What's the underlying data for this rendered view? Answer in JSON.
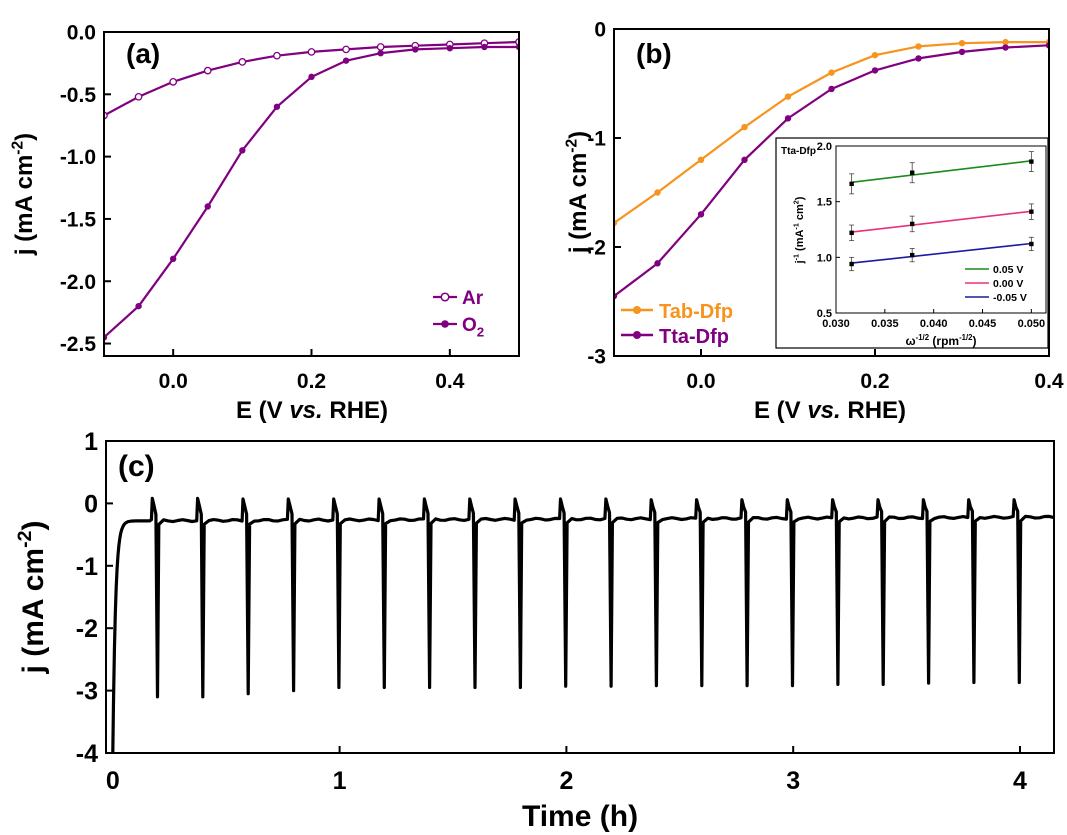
{
  "chart_data": [
    {
      "panel": "(a)",
      "type": "line",
      "xlabel_parts": [
        "E (V ",
        "vs.",
        " RHE)"
      ],
      "ylabel_parts": [
        "j (mA cm",
        "-2",
        ")"
      ],
      "xlim": [
        -0.1,
        0.5
      ],
      "ylim": [
        -2.6,
        0.0
      ],
      "xticks": [
        0.0,
        0.2,
        0.4
      ],
      "xtick_labels": [
        "0.0",
        "0.2",
        "0.4"
      ],
      "yticks": [
        0.0,
        -0.5,
        -1.0,
        -1.5,
        -2.0,
        -2.5
      ],
      "ytick_labels": [
        "0.0",
        "-0.5",
        "-1.0",
        "-1.5",
        "-2.0",
        "-2.5"
      ],
      "legend_position": "bottom-right",
      "series": [
        {
          "name": "Ar",
          "name_parts": [
            "Ar"
          ],
          "marker": "open-circle",
          "color": "#800080",
          "x": [
            -0.1,
            -0.05,
            0.0,
            0.05,
            0.1,
            0.15,
            0.2,
            0.25,
            0.3,
            0.35,
            0.4,
            0.45,
            0.5
          ],
          "y": [
            -0.67,
            -0.52,
            -0.4,
            -0.31,
            -0.24,
            -0.19,
            -0.16,
            -0.14,
            -0.12,
            -0.11,
            -0.1,
            -0.09,
            -0.08
          ]
        },
        {
          "name": "O2",
          "name_parts": [
            "O",
            "2"
          ],
          "marker": "filled-circle",
          "color": "#800080",
          "x": [
            -0.1,
            -0.05,
            0.0,
            0.05,
            0.1,
            0.15,
            0.2,
            0.25,
            0.3,
            0.35,
            0.4,
            0.45,
            0.5
          ],
          "y": [
            -2.45,
            -2.2,
            -1.82,
            -1.4,
            -0.95,
            -0.6,
            -0.36,
            -0.23,
            -0.17,
            -0.14,
            -0.13,
            -0.12,
            -0.12
          ]
        }
      ]
    },
    {
      "panel": "(b)",
      "type": "line",
      "xlabel_parts": [
        "E (V ",
        "vs.",
        " RHE)"
      ],
      "ylabel_parts": [
        "j (mA cm",
        "-2",
        ")"
      ],
      "xlim": [
        -0.1,
        0.4
      ],
      "ylim": [
        -3,
        0
      ],
      "xticks": [
        0.0,
        0.2,
        0.4
      ],
      "xtick_labels": [
        "0.0",
        "0.2",
        "0.4"
      ],
      "yticks": [
        0,
        -1,
        -2,
        -3
      ],
      "ytick_labels": [
        "0",
        "-1",
        "-2",
        "-3"
      ],
      "legend_position": "bottom-left",
      "series": [
        {
          "name": "Tab-Dfp",
          "name_parts": [
            "Tab-Dfp"
          ],
          "marker": "filled-circle",
          "color": "#F7941D",
          "x": [
            -0.1,
            -0.05,
            0.0,
            0.05,
            0.1,
            0.15,
            0.2,
            0.25,
            0.3,
            0.35,
            0.4
          ],
          "y": [
            -1.78,
            -1.5,
            -1.2,
            -0.9,
            -0.62,
            -0.4,
            -0.24,
            -0.16,
            -0.13,
            -0.12,
            -0.12
          ]
        },
        {
          "name": "Tta-Dfp",
          "name_parts": [
            "Tta-Dfp"
          ],
          "marker": "filled-circle",
          "color": "#800080",
          "x": [
            -0.1,
            -0.05,
            0.0,
            0.05,
            0.1,
            0.15,
            0.2,
            0.25,
            0.3,
            0.35,
            0.4
          ],
          "y": [
            -2.45,
            -2.15,
            -1.7,
            -1.2,
            -0.82,
            -0.55,
            -0.38,
            -0.27,
            -0.21,
            -0.17,
            -0.15
          ]
        }
      ],
      "inset": {
        "type": "scatter",
        "title": "Tta-Dfp",
        "xlabel_parts": [
          "ω",
          "-1/2",
          " (rpm",
          "-1/2",
          ")"
        ],
        "ylabel_parts": [
          "j",
          "-1",
          " (mA",
          "-1",
          " cm",
          "2",
          ")"
        ],
        "xlim": [
          0.03,
          0.0515
        ],
        "ylim": [
          0.5,
          2.0
        ],
        "xticks": [
          0.03,
          0.035,
          0.04,
          0.045,
          0.05
        ],
        "xtick_labels": [
          "0.030",
          "0.035",
          "0.040",
          "0.045",
          "0.050"
        ],
        "yticks": [
          0.5,
          1.0,
          1.5,
          2.0
        ],
        "ytick_labels": [
          "0.5",
          "1.0",
          "1.5",
          "2.0"
        ],
        "legend_position": "bottom-right",
        "series": [
          {
            "name": "0.05 V",
            "color": "#1A8A1A",
            "x": [
              0.0316,
              0.0378,
              0.05
            ],
            "y": [
              1.66,
              1.76,
              1.86
            ],
            "err": 0.09
          },
          {
            "name": "0.00 V",
            "color": "#E8307A",
            "x": [
              0.0316,
              0.0378,
              0.05
            ],
            "y": [
              1.22,
              1.3,
              1.41
            ],
            "err": 0.07
          },
          {
            "name": "-0.05 V",
            "color": "#1A1AA0",
            "x": [
              0.0316,
              0.0378,
              0.05
            ],
            "y": [
              0.94,
              1.02,
              1.12
            ],
            "err": 0.06
          }
        ]
      }
    },
    {
      "panel": "(c)",
      "type": "line",
      "xlabel": "Time (h)",
      "ylabel_parts": [
        "j (mA cm",
        "-2",
        ")"
      ],
      "xlim": [
        -0.03,
        4.15
      ],
      "ylim": [
        -4,
        1
      ],
      "xticks": [
        0,
        1,
        2,
        3,
        4
      ],
      "xtick_labels": [
        "0",
        "1",
        "2",
        "3",
        "4"
      ],
      "yticks": [
        1,
        0,
        -1,
        -2,
        -3,
        -4
      ],
      "ytick_labels": [
        "1",
        "0",
        "-1",
        "-2",
        "-3",
        "-4"
      ],
      "series": [
        {
          "name": "",
          "color": "#000000",
          "baseline": {
            "start": -4.0,
            "plateau": -0.28,
            "end": -0.22
          },
          "pulse_times": [
            0.17,
            0.37,
            0.57,
            0.77,
            0.97,
            1.17,
            1.37,
            1.57,
            1.77,
            1.97,
            2.17,
            2.37,
            2.57,
            2.77,
            2.97,
            3.17,
            3.37,
            3.57,
            3.77,
            3.97
          ],
          "spike_high": [
            0.08,
            0.08,
            0.07,
            0.07,
            0.07,
            0.07,
            0.07,
            0.07,
            0.07,
            0.07,
            0.07,
            0.06,
            0.06,
            0.06,
            0.06,
            0.06,
            0.06,
            0.06,
            0.06,
            0.06
          ],
          "spike_low": [
            -3.1,
            -3.1,
            -3.05,
            -3.0,
            -2.95,
            -2.95,
            -2.95,
            -2.95,
            -2.95,
            -2.93,
            -2.93,
            -2.92,
            -2.92,
            -2.92,
            -2.92,
            -2.9,
            -2.9,
            -2.88,
            -2.87,
            -2.87
          ]
        }
      ]
    }
  ]
}
